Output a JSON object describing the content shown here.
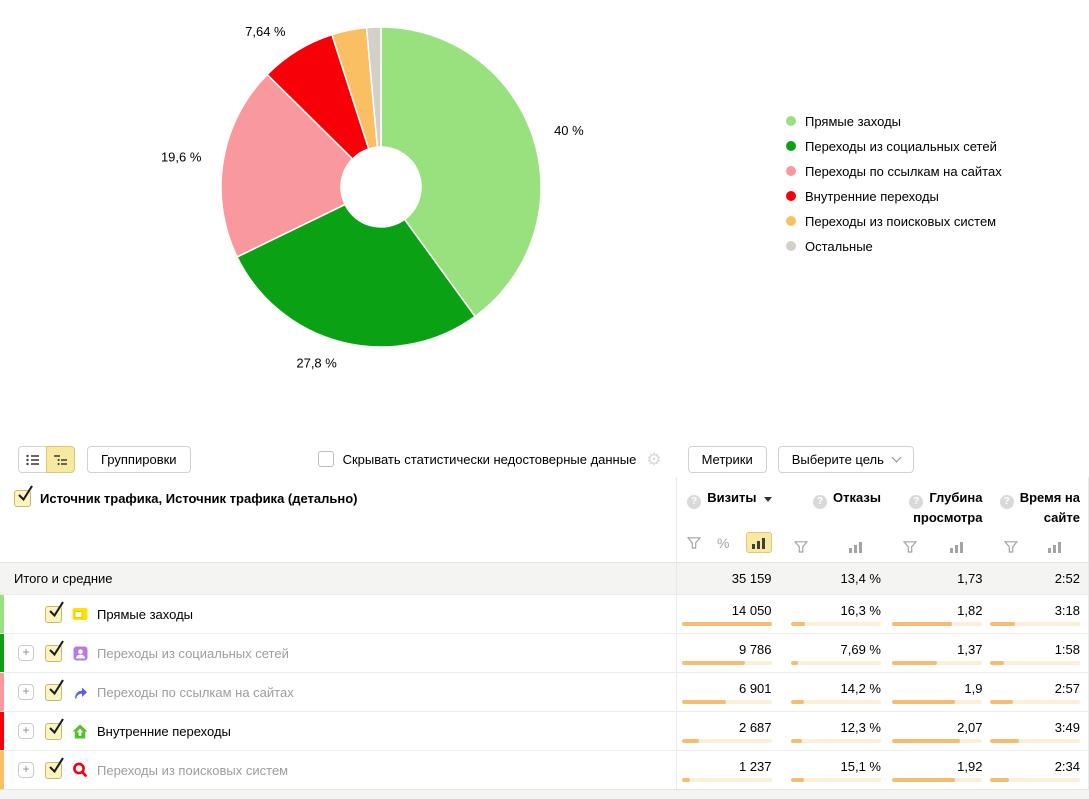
{
  "chart_data": {
    "type": "pie",
    "donut": true,
    "hole_ratio": 0.25,
    "unit": "%",
    "legend_position": "right",
    "slices": [
      {
        "name": "Прямые заходы",
        "value": 40.0,
        "label": "40 %",
        "color": "#99e17e"
      },
      {
        "name": "Переходы из социальных сетей",
        "value": 27.8,
        "label": "27,8 %",
        "color": "#0ba115"
      },
      {
        "name": "Переходы по ссылкам на сайтах",
        "value": 19.6,
        "label": "19,6 %",
        "color": "#f9989d"
      },
      {
        "name": "Внутренние переходы",
        "value": 7.64,
        "label": "7,64 %",
        "color": "#f70008"
      },
      {
        "name": "Переходы из поисковых систем",
        "value": 3.52,
        "label": "",
        "color": "#fbbf63"
      },
      {
        "name": "Остальные",
        "value": 1.44,
        "label": "",
        "color": "#d3cfc9"
      }
    ]
  },
  "toolbar": {
    "list_view_icon": "list-view-icon",
    "tree_view_icon": "tree-view-icon",
    "groupings": "Группировки",
    "hide_unreliable": "Скрывать статистически недостоверные данные",
    "settings_icon": "gear-icon",
    "metrics": "Метрики",
    "select_goal": "Выберите цель"
  },
  "table": {
    "dimension_header": "Источник трафика, Источник трафика (детально)",
    "columns": [
      {
        "label": "Визиты",
        "sorted": true,
        "filter_icons": [
          "funnel-icon",
          "percent-icon",
          "bar-chart-icon-active"
        ]
      },
      {
        "label": "Отказы",
        "filter_icons": [
          "funnel-icon",
          "bar-chart-icon"
        ]
      },
      {
        "label": "Глубина просмотра",
        "filter_icons": [
          "funnel-icon",
          "bar-chart-icon"
        ]
      },
      {
        "label": "Время на сайте",
        "filter_icons": [
          "funnel-icon",
          "bar-chart-icon"
        ]
      }
    ],
    "totals": {
      "label": "Итого и средние",
      "values": [
        {
          "text": "35 159"
        },
        {
          "text": "13,4 %"
        },
        {
          "text": "1,73"
        },
        {
          "text": "2:52"
        }
      ]
    },
    "rows": [
      {
        "label": "Прямые заходы",
        "icon": "browser-window-icon",
        "color": "#99e17e",
        "checked": true,
        "expandable": false,
        "muted": false,
        "values": [
          {
            "text": "14 050",
            "fill": 100
          },
          {
            "text": "16,3 %",
            "fill": 16
          },
          {
            "text": "1,82",
            "fill": 66
          },
          {
            "text": "3:18",
            "fill": 28
          }
        ]
      },
      {
        "label": "Переходы из социальных сетей",
        "icon": "social-person-icon",
        "color": "#0ba115",
        "checked": true,
        "expandable": true,
        "muted": true,
        "values": [
          {
            "text": "9 786",
            "fill": 70
          },
          {
            "text": "7,69 %",
            "fill": 8
          },
          {
            "text": "1,37",
            "fill": 50
          },
          {
            "text": "1:58",
            "fill": 16
          }
        ]
      },
      {
        "label": "Переходы по ссылкам на сайтах",
        "icon": "external-link-arrow-icon",
        "color": "#f9989d",
        "checked": true,
        "expandable": true,
        "muted": true,
        "values": [
          {
            "text": "6 901",
            "fill": 49
          },
          {
            "text": "14,2 %",
            "fill": 14
          },
          {
            "text": "1,9",
            "fill": 69
          },
          {
            "text": "2:57",
            "fill": 25
          }
        ]
      },
      {
        "label": "Внутренние переходы",
        "icon": "internal-home-icon",
        "color": "#f70008",
        "checked": true,
        "expandable": true,
        "muted": false,
        "values": [
          {
            "text": "2 687",
            "fill": 19
          },
          {
            "text": "12,3 %",
            "fill": 12
          },
          {
            "text": "2,07",
            "fill": 75
          },
          {
            "text": "3:49",
            "fill": 32
          }
        ]
      },
      {
        "label": "Переходы из поисковых систем",
        "icon": "search-engine-icon",
        "color": "#fbbf63",
        "checked": true,
        "expandable": true,
        "muted": true,
        "values": [
          {
            "text": "1 237",
            "fill": 9
          },
          {
            "text": "15,1 %",
            "fill": 15
          },
          {
            "text": "1,92",
            "fill": 70
          },
          {
            "text": "2:34",
            "fill": 21
          }
        ]
      }
    ]
  }
}
